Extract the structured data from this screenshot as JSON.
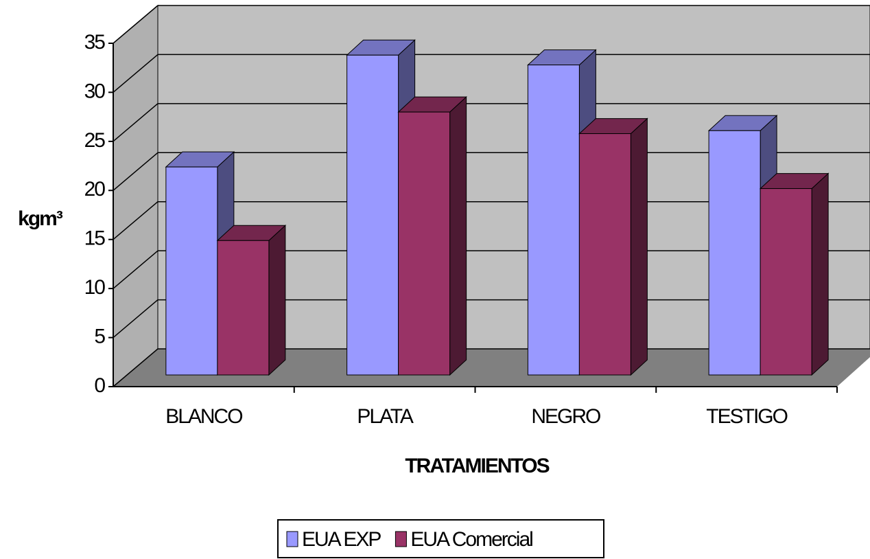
{
  "chart_data": {
    "type": "bar3d",
    "y_label": "kgm³",
    "x_label": "TRATAMIENTOS",
    "categories": [
      "BLANCO",
      "PLATA",
      "NEGRO",
      "TESTIGO"
    ],
    "series": [
      {
        "name": "EUA EXP",
        "color": "#9999ff",
        "values": [
          21.2,
          32.6,
          31.6,
          24.9
        ]
      },
      {
        "name": "EUA Comercial",
        "color": "#993366",
        "values": [
          13.7,
          26.8,
          24.6,
          19.0
        ]
      }
    ],
    "ylim": [
      0,
      35
    ],
    "yticks": [
      0,
      5,
      10,
      15,
      20,
      25,
      30,
      35
    ],
    "grid": true,
    "legend": "bottom"
  }
}
